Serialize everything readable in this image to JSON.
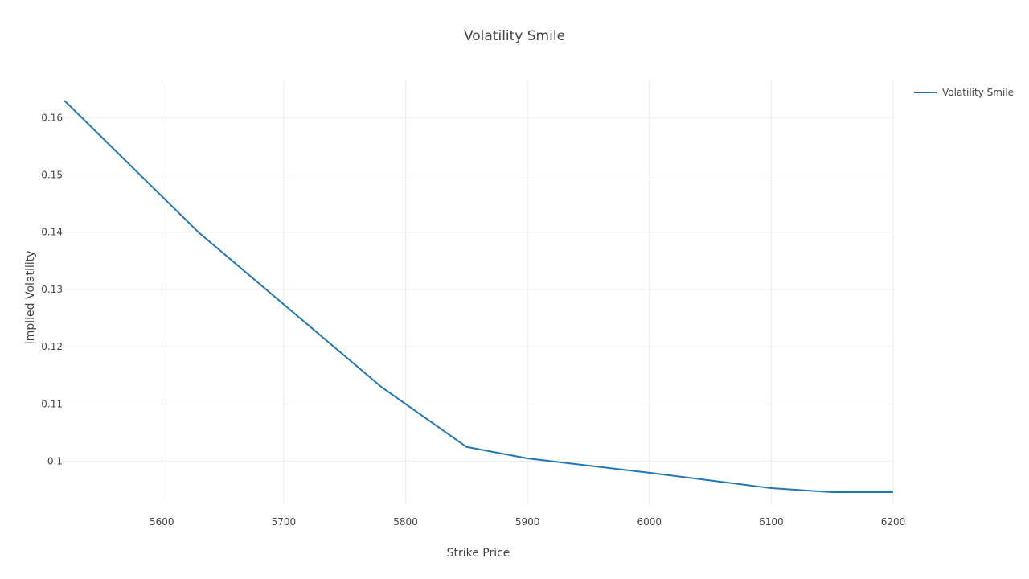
{
  "chart_data": {
    "type": "line",
    "title": "Volatility Smile",
    "xlabel": "Strike Price",
    "ylabel": "Implied Volatility",
    "xlim": [
      5520,
      6200
    ],
    "ylim": [
      0.0925,
      0.1665
    ],
    "grid": true,
    "legend_position": "top-right",
    "x_ticks": [
      5600,
      5700,
      5800,
      5900,
      6000,
      6100,
      6200
    ],
    "y_ticks": [
      0.1,
      0.11,
      0.12,
      0.13,
      0.14,
      0.15,
      0.16
    ],
    "x_tick_labels": [
      "5600",
      "5700",
      "5800",
      "5900",
      "6000",
      "6100",
      "6200"
    ],
    "y_tick_labels": [
      "0.1",
      "0.11",
      "0.12",
      "0.13",
      "0.14",
      "0.15",
      "0.16"
    ],
    "series": [
      {
        "name": "Volatility Smile",
        "color": "#1f77b4",
        "x": [
          5520,
          5630,
          5780,
          5850,
          5900,
          6000,
          6100,
          6150,
          6200
        ],
        "y": [
          0.163,
          0.14,
          0.113,
          0.1025,
          0.1005,
          0.098,
          0.0953,
          0.0946,
          0.0946
        ]
      }
    ]
  }
}
